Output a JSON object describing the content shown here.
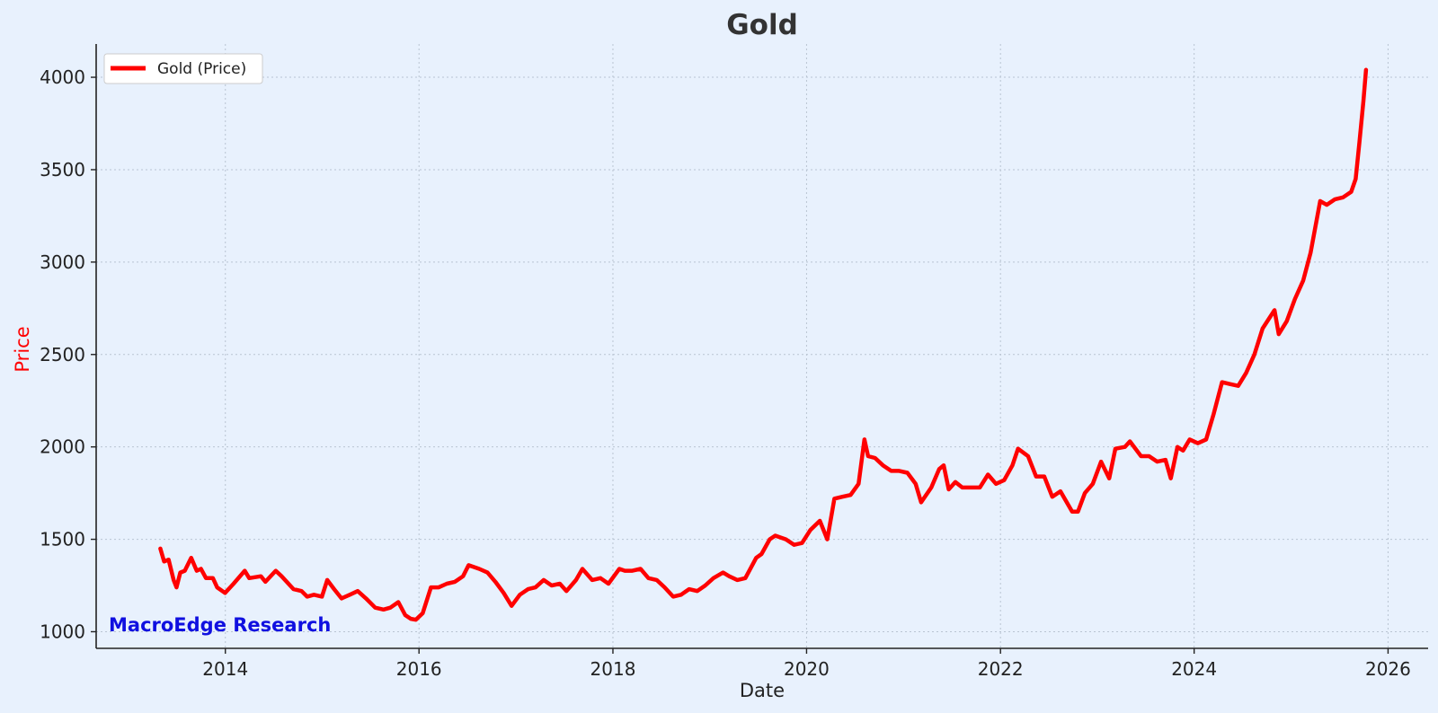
{
  "chart_data": {
    "type": "line",
    "title": "Gold",
    "xlabel": "Date",
    "ylabel": "Price",
    "xlim": [
      "2012-09-01",
      "2026-06-01"
    ],
    "ylim": [
      910,
      4180
    ],
    "x_ticks": [
      "2014",
      "2016",
      "2018",
      "2020",
      "2022",
      "2024",
      "2026"
    ],
    "y_ticks": [
      1000,
      1500,
      2000,
      2500,
      3000,
      3500,
      4000
    ],
    "grid": true,
    "legend": "top-left",
    "watermark": "MacroEdge Research",
    "colors": {
      "line": "#ff0000",
      "ylabel": "#ff0000",
      "watermark": "#1010e0",
      "background": "#e8f1fd",
      "title": "#333333"
    },
    "series": [
      {
        "name": "Gold (Price)",
        "x": [
          "2013-05-01",
          "2013-05-15",
          "2013-06-01",
          "2013-06-20",
          "2013-07-01",
          "2013-07-15",
          "2013-08-01",
          "2013-08-25",
          "2013-09-15",
          "2013-10-01",
          "2013-10-20",
          "2013-11-15",
          "2013-12-01",
          "2013-12-31",
          "2014-02-01",
          "2014-03-15",
          "2014-04-01",
          "2014-05-15",
          "2014-06-01",
          "2014-07-10",
          "2014-08-01",
          "2014-09-15",
          "2014-10-15",
          "2014-11-05",
          "2014-12-01",
          "2014-12-31",
          "2015-01-20",
          "2015-02-15",
          "2015-03-15",
          "2015-04-15",
          "2015-05-15",
          "2015-06-15",
          "2015-07-20",
          "2015-08-20",
          "2015-09-15",
          "2015-10-15",
          "2015-11-10",
          "2015-12-01",
          "2015-12-20",
          "2016-01-15",
          "2016-02-15",
          "2016-03-15",
          "2016-04-15",
          "2016-05-15",
          "2016-06-15",
          "2016-07-06",
          "2016-08-15",
          "2016-09-15",
          "2016-10-15",
          "2016-11-15",
          "2016-12-15",
          "2017-01-15",
          "2017-02-15",
          "2017-03-15",
          "2017-04-15",
          "2017-05-15",
          "2017-06-15",
          "2017-07-10",
          "2017-08-15",
          "2017-09-08",
          "2017-10-15",
          "2017-11-15",
          "2017-12-15",
          "2018-01-25",
          "2018-02-15",
          "2018-03-15",
          "2018-04-15",
          "2018-05-15",
          "2018-06-15",
          "2018-07-15",
          "2018-08-16",
          "2018-09-15",
          "2018-10-15",
          "2018-11-15",
          "2018-12-15",
          "2019-01-15",
          "2019-02-20",
          "2019-03-15",
          "2019-04-15",
          "2019-05-15",
          "2019-06-25",
          "2019-07-15",
          "2019-08-15",
          "2019-09-05",
          "2019-10-15",
          "2019-11-15",
          "2019-12-15",
          "2020-01-15",
          "2020-02-20",
          "2020-03-19",
          "2020-04-15",
          "2020-05-15",
          "2020-06-15",
          "2020-07-15",
          "2020-08-06",
          "2020-08-20",
          "2020-09-15",
          "2020-10-15",
          "2020-11-15",
          "2020-12-15",
          "2021-01-15",
          "2021-02-15",
          "2021-03-08",
          "2021-04-15",
          "2021-05-15",
          "2021-06-01",
          "2021-06-20",
          "2021-07-15",
          "2021-08-10",
          "2021-09-15",
          "2021-10-15",
          "2021-11-15",
          "2021-12-15",
          "2022-01-15",
          "2022-02-15",
          "2022-03-08",
          "2022-04-15",
          "2022-05-15",
          "2022-06-15",
          "2022-07-15",
          "2022-08-15",
          "2022-09-28",
          "2022-10-20",
          "2022-11-15",
          "2022-12-15",
          "2023-01-15",
          "2023-02-15",
          "2023-03-10",
          "2023-04-15",
          "2023-05-04",
          "2023-06-15",
          "2023-07-15",
          "2023-08-15",
          "2023-09-15",
          "2023-10-05",
          "2023-10-30",
          "2023-11-20",
          "2023-12-15",
          "2024-01-15",
          "2024-02-15",
          "2024-03-15",
          "2024-04-15",
          "2024-05-15",
          "2024-06-15",
          "2024-07-15",
          "2024-08-15",
          "2024-09-15",
          "2024-10-30",
          "2024-11-15",
          "2024-12-15",
          "2025-01-15",
          "2025-02-15",
          "2025-03-15",
          "2025-04-20",
          "2025-05-15",
          "2025-06-15",
          "2025-07-15",
          "2025-08-15",
          "2025-09-01",
          "2025-09-15",
          "2025-09-30",
          "2025-10-10"
        ],
        "values": [
          1450,
          1380,
          1390,
          1280,
          1240,
          1320,
          1330,
          1400,
          1330,
          1340,
          1290,
          1290,
          1240,
          1210,
          1260,
          1330,
          1290,
          1300,
          1270,
          1330,
          1300,
          1230,
          1220,
          1190,
          1200,
          1190,
          1280,
          1230,
          1180,
          1200,
          1220,
          1180,
          1130,
          1120,
          1130,
          1160,
          1090,
          1070,
          1065,
          1100,
          1240,
          1240,
          1260,
          1270,
          1300,
          1360,
          1340,
          1320,
          1270,
          1210,
          1140,
          1200,
          1230,
          1240,
          1280,
          1250,
          1260,
          1220,
          1280,
          1340,
          1280,
          1290,
          1260,
          1340,
          1330,
          1330,
          1340,
          1290,
          1280,
          1240,
          1190,
          1200,
          1230,
          1220,
          1250,
          1290,
          1320,
          1300,
          1280,
          1290,
          1400,
          1420,
          1500,
          1520,
          1500,
          1470,
          1480,
          1550,
          1600,
          1500,
          1720,
          1730,
          1740,
          1800,
          2040,
          1950,
          1940,
          1900,
          1870,
          1870,
          1860,
          1800,
          1700,
          1780,
          1880,
          1900,
          1770,
          1810,
          1780,
          1780,
          1780,
          1850,
          1800,
          1820,
          1900,
          1990,
          1950,
          1840,
          1840,
          1730,
          1760,
          1650,
          1650,
          1750,
          1800,
          1920,
          1830,
          1990,
          2000,
          2030,
          1950,
          1950,
          1920,
          1930,
          1830,
          2000,
          1980,
          2040,
          2020,
          2040,
          2180,
          2350,
          2340,
          2330,
          2400,
          2500,
          2640,
          2740,
          2610,
          2680,
          2800,
          2900,
          3050,
          3330,
          3310,
          3340,
          3350,
          3380,
          3450,
          3650,
          3870,
          4040
        ]
      }
    ]
  }
}
